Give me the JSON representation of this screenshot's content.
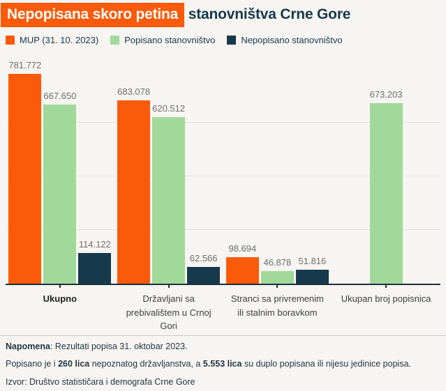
{
  "title": {
    "highlight": "Nepopisana skoro petina",
    "rest": " stanovništva Crne Gore"
  },
  "legend": [
    {
      "label": "MUP (31. 10. 2023)",
      "color": "#fa5a0a"
    },
    {
      "label": "Popisano stanovništvo",
      "color": "#a1d99b"
    },
    {
      "label": "Nepopisano stanovništvo",
      "color": "#17394c"
    }
  ],
  "chart_data": {
    "type": "bar",
    "title": "Nepopisana skoro petina stanovništva Crne Gore",
    "categories": [
      "Ukupno",
      "Državljani sa prebivalištem u Crnoj Gori",
      "Stranci sa privremenim ili stalnim boravkom",
      "Ukupan broj popisnica"
    ],
    "categories_wrapped": [
      "Ukupno",
      "Državljani sa\nprebivalištem u Crnoj\nGori",
      "Stranci sa privremenim\nili stalnim boravkom",
      "Ukupan broj popisnica"
    ],
    "series": [
      {
        "name": "MUP (31. 10. 2023)",
        "color": "#fa5a0a",
        "values": [
          781772,
          683078,
          98694,
          null
        ]
      },
      {
        "name": "Popisano stanovništvo",
        "color": "#a1d99b",
        "values": [
          667650,
          620512,
          46878,
          673203
        ]
      },
      {
        "name": "Nepopisano stanovništvo",
        "color": "#17394c",
        "values": [
          114122,
          62566,
          51816,
          null
        ]
      }
    ],
    "value_labels_shown": true,
    "value_label_format": "thousands-dot",
    "xlabel": "",
    "ylabel": "",
    "ylim": [
      0,
      850000
    ],
    "gridlines_y": [
      200000,
      400000,
      600000
    ],
    "legend_position": "top"
  },
  "footer": {
    "note_label": "Napomena",
    "note_rest": ": Rezultati popisa 31. oktobar 2023.",
    "line2_part1": "Popisano je i ",
    "line2_bold1": "260 lica",
    "line2_part2": " nepoznatog državljanstva, a ",
    "line2_bold2": "5.553 lica",
    "line2_part3": " su duplo popisana ili nijesu jedinice popisa.",
    "source": "Izvor: Društvo statističara i demografa Crne Gore"
  },
  "colors": {
    "background": "#f7f5f2",
    "orange": "#fa5a0a",
    "green": "#a1d99b",
    "navy": "#17394c",
    "gridline": "#e2dfda",
    "axis": "#1c2f3a",
    "value_label": "#6e6e6e"
  }
}
